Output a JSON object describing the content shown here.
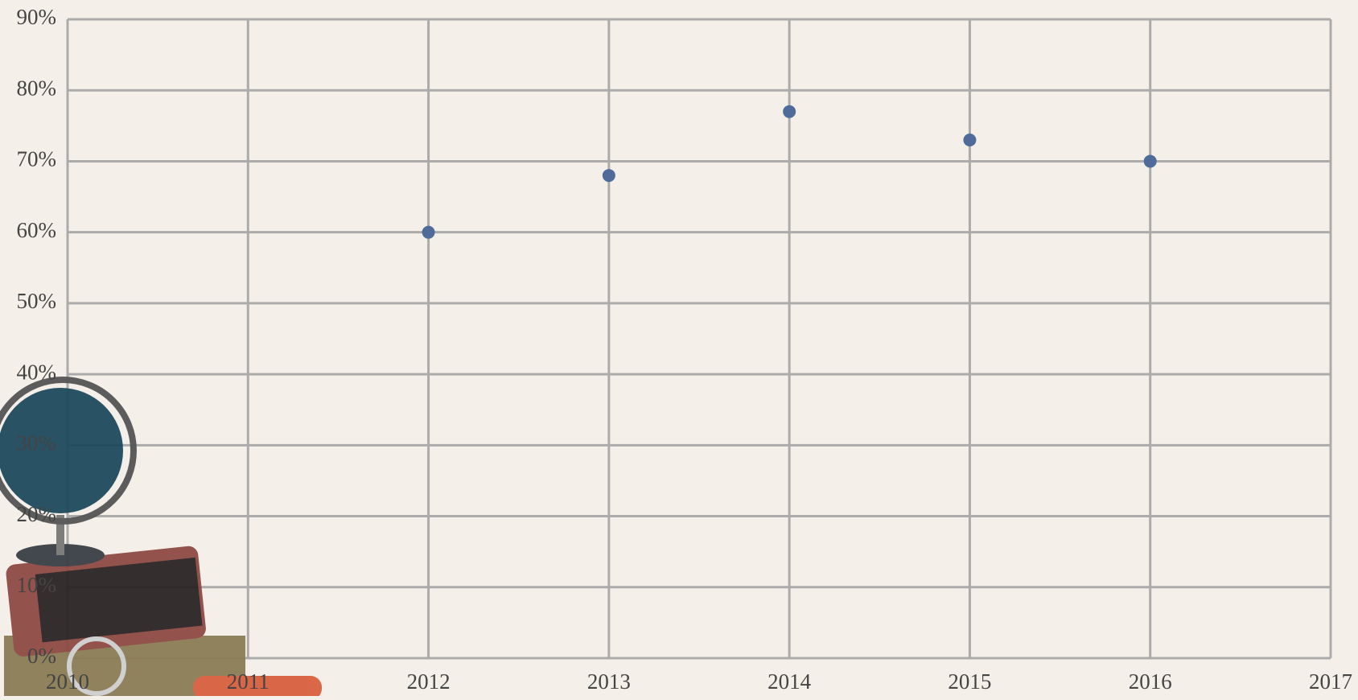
{
  "chart_data": {
    "type": "scatter",
    "x": [
      2012,
      2013,
      2014,
      2015,
      2016
    ],
    "series": [
      {
        "color": "#4f6b99",
        "values": [
          60,
          68,
          77,
          73,
          70
        ]
      }
    ],
    "xlim": [
      2010,
      2017
    ],
    "xticks": [
      2010,
      2011,
      2012,
      2013,
      2014,
      2015,
      2016,
      2017
    ],
    "ylim": [
      0,
      90
    ],
    "yticks": [
      {
        "value": 0,
        "label": "0%"
      },
      {
        "value": 10,
        "label": "10%"
      },
      {
        "value": 20,
        "label": "20%"
      },
      {
        "value": 30,
        "label": "30%"
      },
      {
        "value": 40,
        "label": "40%"
      },
      {
        "value": 50,
        "label": "50%"
      },
      {
        "value": 60,
        "label": "60%"
      },
      {
        "value": 70,
        "label": "70%"
      },
      {
        "value": 80,
        "label": "80%"
      },
      {
        "value": 90,
        "label": "90%"
      }
    ],
    "grid": true
  }
}
